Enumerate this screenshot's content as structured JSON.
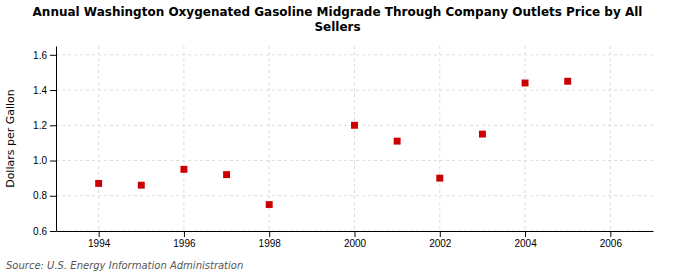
{
  "chart_data": {
    "type": "scatter",
    "title": "Annual Washington Oxygenated Gasoline Midgrade Through Company Outlets Price by All\nSellers",
    "ylabel": "Dollars per Gallon",
    "source": "Source: U.S. Energy Information Administration",
    "x": [
      1994,
      1995,
      1996,
      1997,
      1998,
      2000,
      2001,
      2002,
      2003,
      2004,
      2005
    ],
    "values": [
      0.87,
      0.86,
      0.95,
      0.92,
      0.75,
      1.2,
      1.11,
      0.9,
      1.15,
      1.44,
      1.45
    ],
    "color": "#cc0000",
    "marker": "square",
    "xlim": [
      1993.0,
      2007.0
    ],
    "ylim": [
      0.6,
      1.65
    ],
    "xticks": [
      1994,
      1996,
      1998,
      2000,
      2002,
      2004,
      2006
    ],
    "yticks": [
      0.6,
      0.8,
      {
        "value": 1.0,
        "label": "1.0"
      },
      1.2,
      1.4,
      1.6
    ],
    "grid": true
  }
}
